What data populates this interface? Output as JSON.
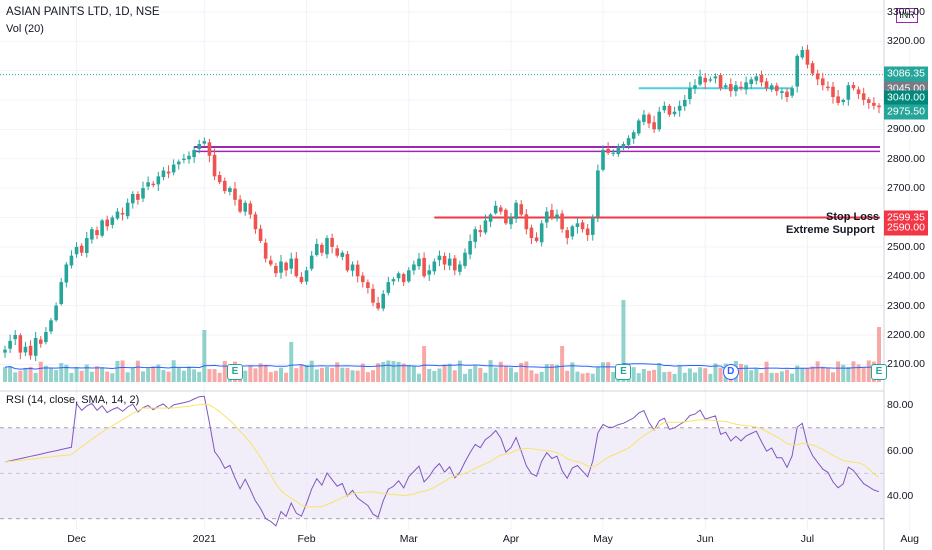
{
  "header": {
    "title": "ASIAN PAINTS LTD, 1D, NSE",
    "volume_label": "Vol (20)",
    "rsi_label": "RSI (14, close, SMA, 14, 2)",
    "currency": "INR"
  },
  "annotations": {
    "stop_loss": "Stop Loss",
    "extreme_support": "Extreme Support"
  },
  "colors": {
    "up": "#26a69a",
    "down": "#ef5350",
    "resistance": "#9c27b0",
    "support_line": "#f23645",
    "cyan_line": "#4dd0e1",
    "volume_ma": "#2962ff",
    "rsi_line": "#7e57c2",
    "rsi_ma": "#f7e36b",
    "rsi_band": "#ede7f6"
  },
  "chart_data": {
    "type": "candlestick",
    "symbol": "ASIAN PAINTS LTD",
    "interval": "1D",
    "exchange": "NSE",
    "price_axis": {
      "ticks": [
        2100,
        2200,
        2300,
        2400,
        2500,
        2600,
        2700,
        2800,
        2900,
        3000,
        3100,
        3200,
        3300
      ],
      "tick_labels": [
        "2100.00",
        "2200.00",
        "2300.00",
        "2400.00",
        "2500.00",
        "2600.00",
        "2700.00",
        "2800.00",
        "2900.00",
        "3000.00",
        "3100.00",
        "3200.00",
        "3300.00"
      ],
      "range": [
        2040,
        3330
      ]
    },
    "time_axis": {
      "labels": [
        "Dec",
        "2021",
        "Feb",
        "Mar",
        "Apr",
        "May",
        "Jun",
        "Jul",
        "Aug"
      ]
    },
    "closes": [
      2150,
      2180,
      2200,
      2140,
      2160,
      2130,
      2190,
      2170,
      2210,
      2250,
      2300,
      2380,
      2440,
      2470,
      2500,
      2480,
      2530,
      2560,
      2540,
      2590,
      2570,
      2600,
      2620,
      2610,
      2650,
      2680,
      2660,
      2700,
      2720,
      2710,
      2740,
      2760,
      2750,
      2780,
      2790,
      2800,
      2810,
      2830,
      2850,
      2860,
      2810,
      2740,
      2720,
      2690,
      2700,
      2660,
      2620,
      2650,
      2610,
      2560,
      2520,
      2460,
      2440,
      2410,
      2450,
      2420,
      2460,
      2400,
      2380,
      2420,
      2470,
      2510,
      2480,
      2530,
      2500,
      2470,
      2480,
      2420,
      2440,
      2400,
      2380,
      2360,
      2310,
      2290,
      2340,
      2380,
      2390,
      2410,
      2380,
      2420,
      2440,
      2460,
      2400,
      2420,
      2450,
      2470,
      2440,
      2460,
      2420,
      2440,
      2480,
      2520,
      2560,
      2550,
      2590,
      2610,
      2640,
      2620,
      2580,
      2600,
      2650,
      2610,
      2560,
      2530,
      2520,
      2580,
      2620,
      2600,
      2610,
      2560,
      2530,
      2570,
      2580,
      2560,
      2540,
      2600,
      2760,
      2830,
      2820,
      2820,
      2840,
      2850,
      2870,
      2890,
      2930,
      2950,
      2920,
      2900,
      2960,
      2980,
      2950,
      2960,
      2980,
      3000,
      3040,
      3050,
      3080,
      3060,
      3070,
      3080,
      3040,
      3050,
      3030,
      3050,
      3040,
      3060,
      3070,
      3080,
      3060,
      3040,
      3050,
      3030,
      3030,
      3010,
      3040,
      3150,
      3170,
      3120,
      3090,
      3070,
      3050,
      3040,
      3010,
      2990,
      3000,
      3050,
      3040,
      3020,
      3000,
      2990,
      2980,
      2975
    ],
    "dates": {
      "Dec": 14,
      "2021": 39,
      "Feb": 59,
      "Mar": 79,
      "Apr": 99,
      "May": 117,
      "Jun": 137,
      "Jul": 157,
      "Aug": 177
    },
    "horizontal_levels": [
      {
        "value": 2840,
        "label": "resistance band",
        "color": "#9c27b0"
      },
      {
        "value": 2825,
        "label": "resistance band",
        "color": "#9c27b0"
      },
      {
        "value": 2600,
        "label": "Stop Loss / Extreme Support",
        "color": "#f23645"
      },
      {
        "value": 3040,
        "label": "cyan level",
        "color": "#4dd0e1"
      }
    ],
    "price_labels": [
      {
        "value": 3086.35,
        "text": "3086.35",
        "color": "#26a69a"
      },
      {
        "value": 3045,
        "text": "3045.00",
        "color": "#787b86"
      },
      {
        "value": 3040,
        "text": "3040.00",
        "color": "#00897b"
      },
      {
        "value": 2975.5,
        "text": "2975.50",
        "color": "#26a69a"
      },
      {
        "value": 2599.35,
        "text": "2599.35",
        "color": "#f23645"
      },
      {
        "value": 2590,
        "text": "2590.00",
        "color": "#f23645"
      }
    ],
    "rsi": {
      "ticks": [
        40,
        60,
        80
      ],
      "tick_labels": [
        "40.00",
        "60.00",
        "80.00"
      ],
      "upper": 70,
      "lower": 30,
      "middle": 50,
      "range": [
        25,
        85
      ]
    },
    "events": [
      {
        "type": "E",
        "index": 45
      },
      {
        "type": "E",
        "index": 121
      },
      {
        "type": "D",
        "index": 142
      },
      {
        "type": "E",
        "index": 171
      }
    ]
  }
}
